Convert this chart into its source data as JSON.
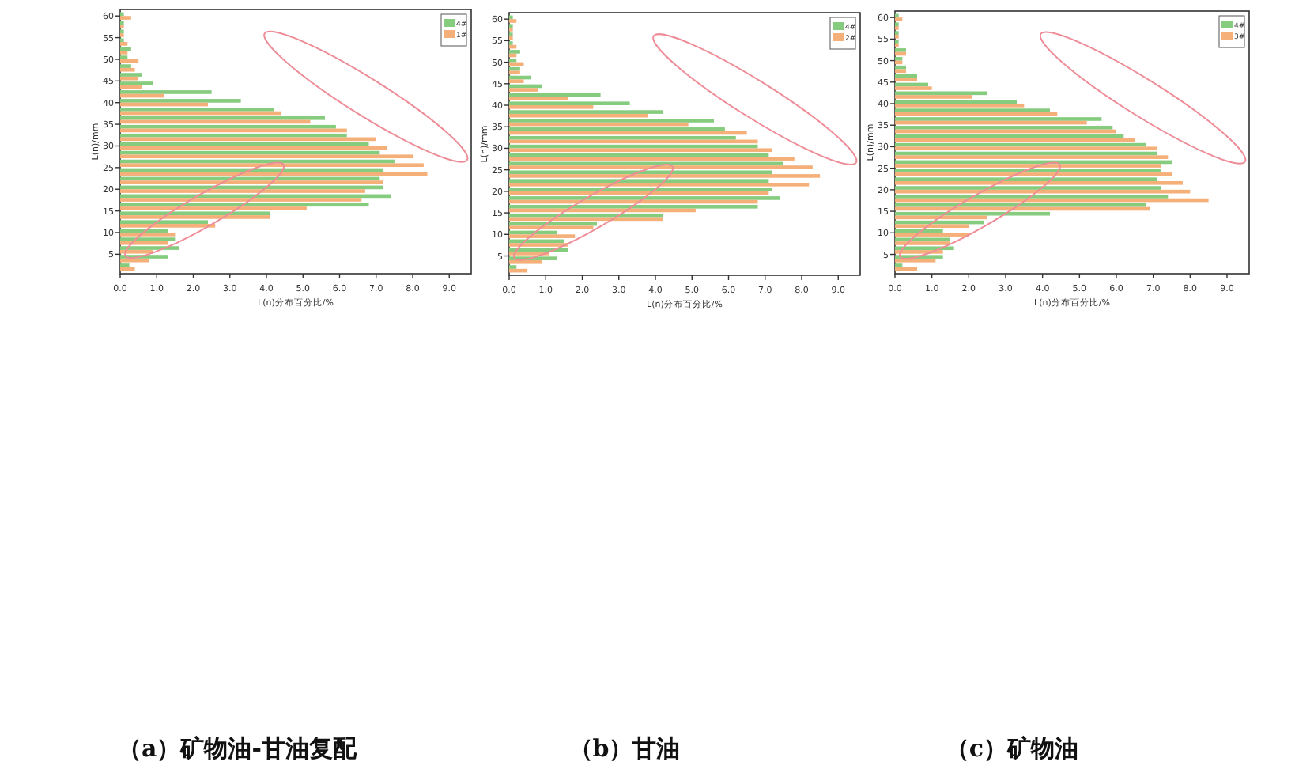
{
  "chart_data": [
    {
      "type": "bar",
      "orientation": "horizontal",
      "title": "（a）矿物油-甘油复配",
      "xlabel": "L(n)分布百分比/%",
      "ylabel": "L(n)/mm",
      "legend": "top right",
      "x": [
        2,
        4,
        6,
        8,
        10,
        12,
        14,
        16,
        18,
        20,
        22,
        24,
        26,
        28,
        30,
        32,
        34,
        36,
        38,
        40,
        42,
        44,
        46,
        48,
        50,
        52,
        54,
        56,
        58,
        60
      ],
      "xlim": [
        0,
        9.6
      ],
      "xticks": [
        {
          "value": 0,
          "label": "0.0"
        },
        {
          "value": 1,
          "label": "1.0"
        },
        {
          "value": 2,
          "label": "2.0"
        },
        {
          "value": 3,
          "label": "3.0"
        },
        {
          "value": 4,
          "label": "4.0"
        },
        {
          "value": 5,
          "label": "5.0"
        },
        {
          "value": 6,
          "label": "6.0"
        },
        {
          "value": 7,
          "label": "7.0"
        },
        {
          "value": 8,
          "label": "8.0"
        },
        {
          "value": 9,
          "label": "9.0"
        }
      ],
      "ylim": [
        0.5,
        61.5
      ],
      "yticks": [
        5,
        10,
        15,
        20,
        25,
        30,
        35,
        40,
        45,
        50,
        55,
        60
      ],
      "series": [
        {
          "name": "4#",
          "color": "#86cc7e",
          "values": [
            0.25,
            1.3,
            1.6,
            1.5,
            1.3,
            2.4,
            4.1,
            6.8,
            7.4,
            7.2,
            7.1,
            7.2,
            7.5,
            7.1,
            6.8,
            6.2,
            5.9,
            5.6,
            4.2,
            3.3,
            2.5,
            0.9,
            0.6,
            0.3,
            0.2,
            0.3,
            0.1,
            0.1,
            0.1,
            0.1
          ]
        },
        {
          "name": "1#",
          "color": "#f5b07a",
          "values": [
            0.4,
            0.8,
            0.9,
            1.3,
            1.5,
            2.6,
            4.1,
            5.1,
            6.6,
            6.7,
            7.2,
            8.4,
            8.3,
            8.0,
            7.3,
            7.0,
            6.2,
            5.2,
            4.4,
            2.4,
            1.2,
            0.6,
            0.5,
            0.4,
            0.5,
            0.2,
            0.2,
            0.1,
            0.1,
            0.3
          ]
        }
      ]
    },
    {
      "type": "bar",
      "orientation": "horizontal",
      "title": "（b）甘油",
      "xlabel": "L(n)分布百分比/%",
      "ylabel": "L(n)/mm",
      "legend": "top right",
      "x": [
        2,
        4,
        6,
        8,
        10,
        12,
        14,
        16,
        18,
        20,
        22,
        24,
        26,
        28,
        30,
        32,
        34,
        36,
        38,
        40,
        42,
        44,
        46,
        48,
        50,
        52,
        54,
        56,
        58,
        60
      ],
      "xlim": [
        0,
        9.6
      ],
      "xticks": [
        {
          "value": 0,
          "label": "0.0"
        },
        {
          "value": 1,
          "label": "1.0"
        },
        {
          "value": 2,
          "label": "2.0"
        },
        {
          "value": 3,
          "label": "3.0"
        },
        {
          "value": 4,
          "label": "4.0"
        },
        {
          "value": 5,
          "label": "5.0"
        },
        {
          "value": 6,
          "label": "6.0"
        },
        {
          "value": 7,
          "label": "7.0"
        },
        {
          "value": 8,
          "label": "8.0"
        },
        {
          "value": 9,
          "label": "9.0"
        }
      ],
      "ylim": [
        0.5,
        61.5
      ],
      "yticks": [
        5,
        10,
        15,
        20,
        25,
        30,
        35,
        40,
        45,
        50,
        55,
        60
      ],
      "series": [
        {
          "name": "4#",
          "color": "#86cc7e",
          "values": [
            0.2,
            1.3,
            1.6,
            1.5,
            1.3,
            2.4,
            4.2,
            6.8,
            7.4,
            7.2,
            7.1,
            7.2,
            7.5,
            7.1,
            6.8,
            6.2,
            5.9,
            5.6,
            4.2,
            3.3,
            2.5,
            0.9,
            0.6,
            0.3,
            0.2,
            0.3,
            0.1,
            0.1,
            0.1,
            0.1
          ]
        },
        {
          "name": "2#",
          "color": "#f5b07a",
          "values": [
            0.5,
            0.9,
            1.1,
            1.6,
            1.8,
            2.3,
            4.2,
            5.1,
            6.8,
            7.1,
            8.2,
            8.5,
            8.3,
            7.8,
            7.2,
            6.8,
            6.5,
            4.9,
            3.8,
            2.3,
            1.6,
            0.8,
            0.4,
            0.3,
            0.4,
            0.2,
            0.2,
            0.1,
            0.1,
            0.2
          ]
        }
      ]
    },
    {
      "type": "bar",
      "orientation": "horizontal",
      "title": "（c）矿物油",
      "xlabel": "L(n)分布百分比/%",
      "ylabel": "L(n)/mm",
      "legend": "top right",
      "x": [
        2,
        4,
        6,
        8,
        10,
        12,
        14,
        16,
        18,
        20,
        22,
        24,
        26,
        28,
        30,
        32,
        34,
        36,
        38,
        40,
        42,
        44,
        46,
        48,
        50,
        52,
        54,
        56,
        58,
        60
      ],
      "xlim": [
        0,
        9.6
      ],
      "xticks": [
        {
          "value": 0,
          "label": "0.0"
        },
        {
          "value": 1,
          "label": "1.0"
        },
        {
          "value": 2,
          "label": "2.0"
        },
        {
          "value": 3,
          "label": "3.0"
        },
        {
          "value": 4,
          "label": "4.0"
        },
        {
          "value": 5,
          "label": "5.0"
        },
        {
          "value": 6,
          "label": "6.0"
        },
        {
          "value": 7,
          "label": "7.0"
        },
        {
          "value": 8,
          "label": "8.0"
        },
        {
          "value": 9,
          "label": "9.0"
        }
      ],
      "ylim": [
        0.5,
        61.5
      ],
      "yticks": [
        5,
        10,
        15,
        20,
        25,
        30,
        35,
        40,
        45,
        50,
        55,
        60
      ],
      "series": [
        {
          "name": "4#",
          "color": "#86cc7e",
          "values": [
            0.2,
            1.3,
            1.6,
            1.5,
            1.3,
            2.4,
            4.2,
            6.8,
            7.4,
            7.2,
            7.1,
            7.2,
            7.5,
            7.1,
            6.8,
            6.2,
            5.9,
            5.6,
            4.2,
            3.3,
            2.5,
            0.9,
            0.6,
            0.3,
            0.2,
            0.3,
            0.1,
            0.1,
            0.1,
            0.1
          ]
        },
        {
          "name": "3#",
          "color": "#f5b07a",
          "values": [
            0.6,
            1.1,
            1.3,
            1.5,
            2.0,
            2.0,
            2.5,
            6.9,
            8.5,
            8.0,
            7.8,
            7.5,
            7.2,
            7.4,
            7.1,
            6.5,
            6.0,
            5.2,
            4.4,
            3.5,
            2.1,
            1.0,
            0.6,
            0.3,
            0.2,
            0.3,
            0.1,
            0.1,
            0.1,
            0.2
          ]
        }
      ]
    }
  ]
}
